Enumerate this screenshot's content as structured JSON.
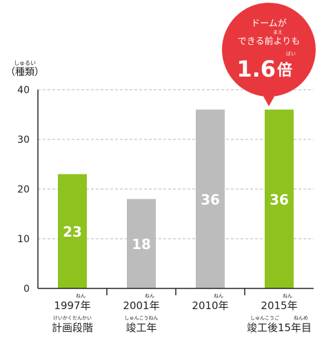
{
  "chart_data": {
    "type": "bar",
    "y_unit_ruby": "しゅるい",
    "y_unit": "（種類）",
    "ylim": [
      0,
      40
    ],
    "y_ticks": [
      0,
      10,
      20,
      30,
      40
    ],
    "grid": true,
    "categories": [
      {
        "year": "1997年",
        "year_ruby": "ねん",
        "sub": "計画段階",
        "sub_ruby": "けいかくだんかい"
      },
      {
        "year": "2001年",
        "year_ruby": "ねん",
        "sub": "竣工年",
        "sub_ruby": "しゅんこうねん"
      },
      {
        "year": "2010年",
        "year_ruby": "ねん",
        "sub": "",
        "sub_ruby": ""
      },
      {
        "year": "2015年",
        "year_ruby": "ねん",
        "sub": "竣工後15年目",
        "sub_ruby": "しゅんこうご　　　ねんめ"
      }
    ],
    "values": [
      23,
      18,
      36,
      36
    ],
    "data_labels": [
      "23",
      "18",
      "36",
      "36"
    ],
    "bar_colors": [
      "#8ec21f",
      "#bcbcbc",
      "#bcbcbc",
      "#8ec21f"
    ],
    "callout": {
      "line1": "ドームが",
      "ruby": "まえ",
      "line2": "できる前よりも",
      "big_ruby": "ばい",
      "big_number": "1.6",
      "big_unit": "倍",
      "color": "#e8383d"
    }
  }
}
